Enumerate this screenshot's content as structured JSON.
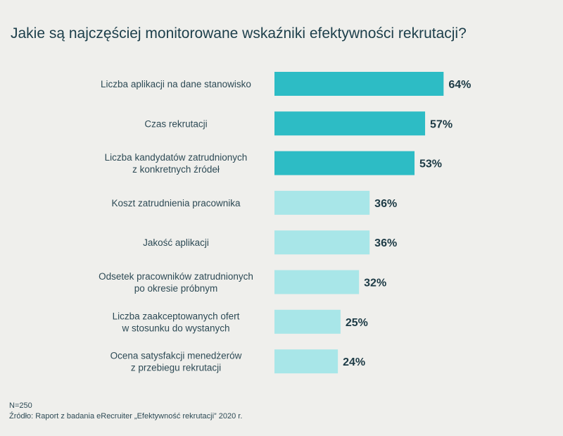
{
  "title": "Jakie są najczęściej monitorowane wskaźniki efektywności rekrutacji?",
  "footer": {
    "sample": "N=250",
    "source": "Źródło: Raport z badania eRecruiter „Efektywność rekrutacji” 2020 r."
  },
  "colors": {
    "highlight": "#2dbcc5",
    "normal": "#a8e6e8",
    "label": "#2d4a55",
    "value": "#1c3a45"
  },
  "chart_data": {
    "type": "bar",
    "orientation": "horizontal",
    "categories": [
      [
        "Liczba aplikacji na dane stanowisko"
      ],
      [
        "Czas rekrutacji"
      ],
      [
        "Liczba kandydatów zatrudnionych",
        "z konkretnych źródeł"
      ],
      [
        "Koszt zatrudnienia pracownika"
      ],
      [
        "Jakość aplikacji"
      ],
      [
        "Odsetek pracowników zatrudnionych",
        "po okresie próbnym"
      ],
      [
        "Liczba zaakceptowanych ofert",
        "w stosunku do wystanych"
      ],
      [
        "Ocena satysfakcji menedżerów",
        "z przebiegu rekrutacji"
      ]
    ],
    "values": [
      64,
      57,
      53,
      36,
      36,
      32,
      25,
      24
    ],
    "value_labels": [
      "64%",
      "57%",
      "53%",
      "36%",
      "36%",
      "32%",
      "25%",
      "24%"
    ],
    "highlighted": [
      true,
      true,
      true,
      false,
      false,
      false,
      false,
      false
    ],
    "xlim": [
      0,
      100
    ],
    "grid": false
  }
}
